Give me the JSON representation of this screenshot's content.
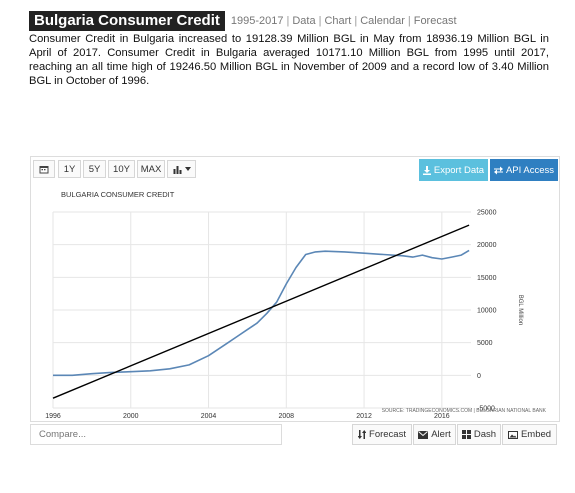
{
  "header": {
    "title": "Bulgaria Consumer Credit",
    "nav": [
      "1995-2017",
      "Data",
      "Chart",
      "Calendar",
      "Forecast"
    ]
  },
  "description": "Consumer Credit in Bulgaria increased to 19128.39 Million BGL in May from 18936.19 Million BGL in April of 2017. Consumer Credit in Bulgaria averaged 10171.10 Million BGL from 1995 until 2017, reaching an all time high of 19246.50 Million BGL in November of 2009 and a record low of 3.40 Million BGL in October of 1996.",
  "toolbar": {
    "range_buttons": [
      "1Y",
      "5Y",
      "10Y",
      "MAX"
    ],
    "calendar_icon": "calendar-icon",
    "chart_type_icon": "bar-chart-icon",
    "export_label": "Export Data",
    "export_icon": "download-icon",
    "api_label": "API Access",
    "api_icon": "exchange-icon"
  },
  "colors": {
    "series": "#5b87b6",
    "trend": "#000000",
    "export_bg": "#5bc0de",
    "api_bg": "#2f7fc1",
    "title_bg": "#222222"
  },
  "bottom": {
    "compare_placeholder": "Compare...",
    "forecast_label": "Forecast",
    "alert_label": "Alert",
    "dash_label": "Dash",
    "embed_label": "Embed"
  },
  "chart_data": {
    "type": "line",
    "title": "BULGARIA CONSUMER CREDIT",
    "ylabel": "BGL Million",
    "source": "SOURCE: TRADINGECONOMICS.COM | BULGARIAN NATIONAL BANK",
    "xlim": [
      1996,
      2017.5
    ],
    "ylim": [
      -5000,
      25000
    ],
    "x_ticks": [
      1996,
      2000,
      2004,
      2008,
      2012,
      2016
    ],
    "y_ticks": [
      -5000,
      0,
      5000,
      10000,
      15000,
      20000,
      25000
    ],
    "grid": true,
    "legend": "none",
    "series": [
      {
        "name": "",
        "style": "line",
        "x": [
          1996,
          1997,
          1998,
          1999,
          2000,
          2001,
          2002,
          2003,
          2004,
          2005,
          2005.5,
          2006,
          2006.5,
          2007,
          2007.5,
          2008,
          2008.5,
          2009,
          2009.5,
          2010,
          2011,
          2012,
          2013,
          2014,
          2014.5,
          2015,
          2015.5,
          2016,
          2016.5,
          2017,
          2017.4
        ],
        "y": [
          0,
          0,
          250,
          450,
          550,
          700,
          1000,
          1600,
          3000,
          5000,
          6000,
          7000,
          8000,
          9500,
          11200,
          14000,
          16500,
          18500,
          18900,
          19000,
          18900,
          18700,
          18500,
          18300,
          18100,
          18400,
          18000,
          17800,
          18100,
          18400,
          19128
        ]
      },
      {
        "name": "",
        "style": "trend",
        "x": [
          1996,
          2017.4
        ],
        "y": [
          -3500,
          23000
        ]
      }
    ]
  }
}
